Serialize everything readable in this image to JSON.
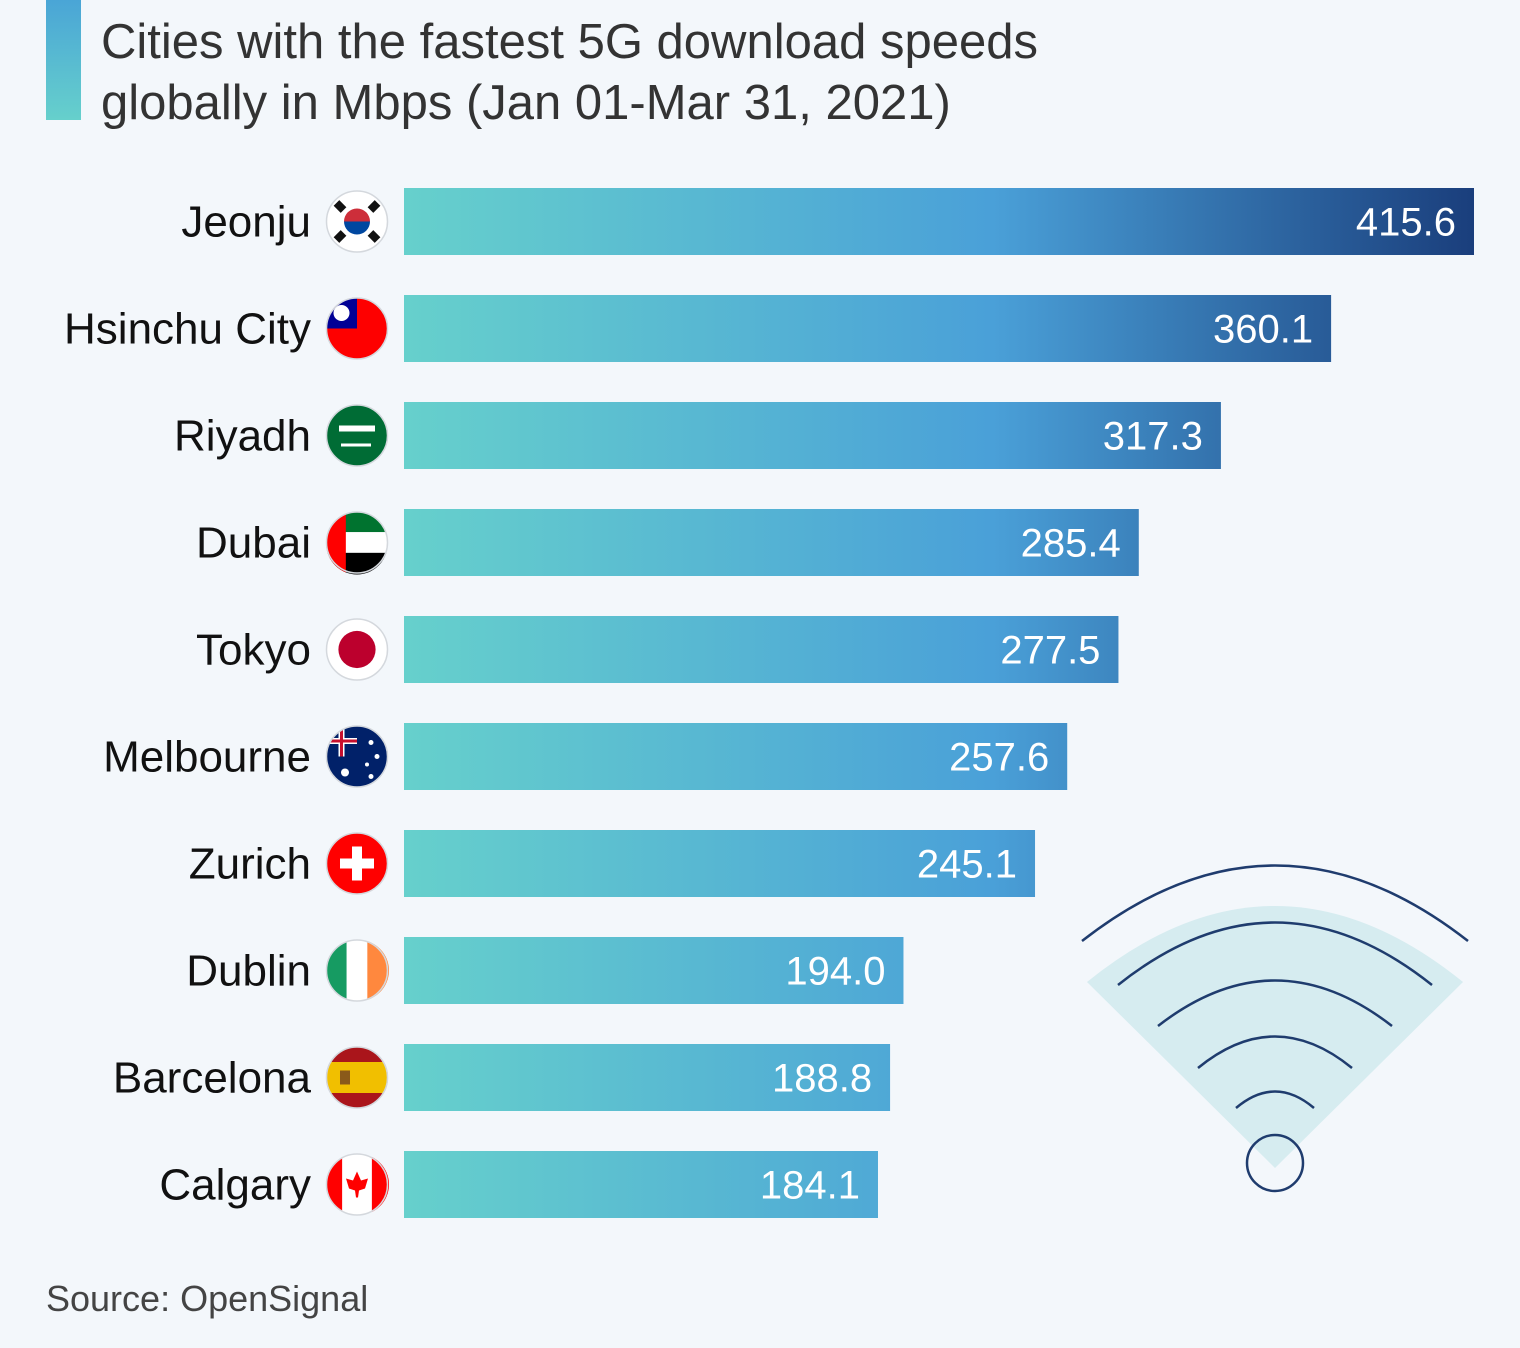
{
  "header": {
    "title": "Cities with the fastest 5G download speeds globally in Mbps (Jan 01-Mar 31, 2021)"
  },
  "source": "Source: OpenSignal",
  "colors": {
    "bar_start": "#66d0cc",
    "bar_mid": "#4aa0d8",
    "bar_end": "#1a3e7c",
    "accent": "#55b8d2",
    "wifi_line": "#1f3c6e",
    "wifi_fill": "#d6ecf0"
  },
  "decoration": {
    "icon": "wifi-icon"
  },
  "chart_data": {
    "type": "bar",
    "orientation": "horizontal",
    "categories": [
      "Jeonju",
      "Hsinchu City",
      "Riyadh",
      "Dubai",
      "Tokyo",
      "Melbourne",
      "Zurich",
      "Dublin",
      "Barcelona",
      "Calgary"
    ],
    "flags": [
      "south-korea-flag-icon",
      "taiwan-flag-icon",
      "saudi-arabia-flag-icon",
      "uae-flag-icon",
      "japan-flag-icon",
      "australia-flag-icon",
      "switzerland-flag-icon",
      "ireland-flag-icon",
      "spain-flag-icon",
      "canada-flag-icon"
    ],
    "values": [
      415.6,
      360.1,
      317.3,
      285.4,
      277.5,
      257.6,
      245.1,
      194.0,
      188.8,
      184.1
    ],
    "value_labels": [
      "415.6",
      "360.1",
      "317.3",
      "285.4",
      "277.5",
      "257.6",
      "245.1",
      "194.0",
      "188.8",
      "184.1"
    ],
    "title": "Cities with the fastest 5G download speeds globally in Mbps (Jan 01-Mar 31, 2021)",
    "xlabel": "",
    "ylabel": "",
    "xlim": [
      0,
      415.6
    ],
    "grid": false,
    "legend": false
  }
}
